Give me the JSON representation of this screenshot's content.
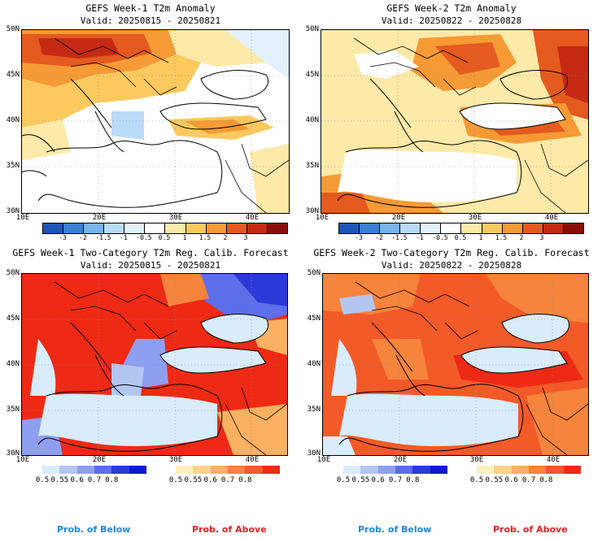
{
  "panels": [
    {
      "title": "GEFS Week-1 T2m Anomaly",
      "valid": "Valid: 20250815 - 20250821"
    },
    {
      "title": "GEFS Week-2 T2m Anomaly",
      "valid": "Valid: 20250822 - 20250828"
    },
    {
      "title": "GEFS Week-1 Two-Category T2m Reg. Calib. Forecast",
      "valid": "Valid: 20250815 - 20250821"
    },
    {
      "title": "GEFS Week-2 Two-Category T2m Reg. Calib. Forecast",
      "valid": "Valid: 20250822 - 20250828"
    }
  ],
  "axes": {
    "lat_labels": [
      "50N",
      "45N",
      "40N",
      "35N",
      "30N"
    ],
    "lon_labels": [
      "10E",
      "20E",
      "30E",
      "40E"
    ]
  },
  "anomaly_colorbar": {
    "labels": [
      "-3",
      "-2",
      "-1.5",
      "-1",
      "-0.5",
      "0.5",
      "1",
      "1.5",
      "2",
      "3"
    ],
    "colors": [
      "#1f55b8",
      "#3a7fd4",
      "#79b3ec",
      "#b9dbf7",
      "#e2f1fc",
      "#ffffff",
      "#fde9a8",
      "#fbc95e",
      "#f59a35",
      "#e45a1f",
      "#c42a14",
      "#8a0f0a"
    ]
  },
  "prob_colorbars": {
    "below_labels": [
      "0.5",
      "0.55",
      "0.6",
      "0.7",
      "0.8"
    ],
    "below_colors": [
      "#d8ecfb",
      "#b3c6f2",
      "#8e9ff0",
      "#5c6ee8",
      "#2a3ad8",
      "#0d17d0"
    ],
    "above_labels": [
      "0.5",
      "0.55",
      "0.6",
      "0.7",
      "0.8"
    ],
    "above_colors": [
      "#fff0c0",
      "#fcd48a",
      "#f9b060",
      "#f6843c",
      "#f25a28",
      "#ee2a14"
    ],
    "below_text": "Prob. of Below",
    "above_text": "Prob. of Above",
    "below_text_color": "#1e88e5",
    "above_text_color": "#e52222"
  }
}
